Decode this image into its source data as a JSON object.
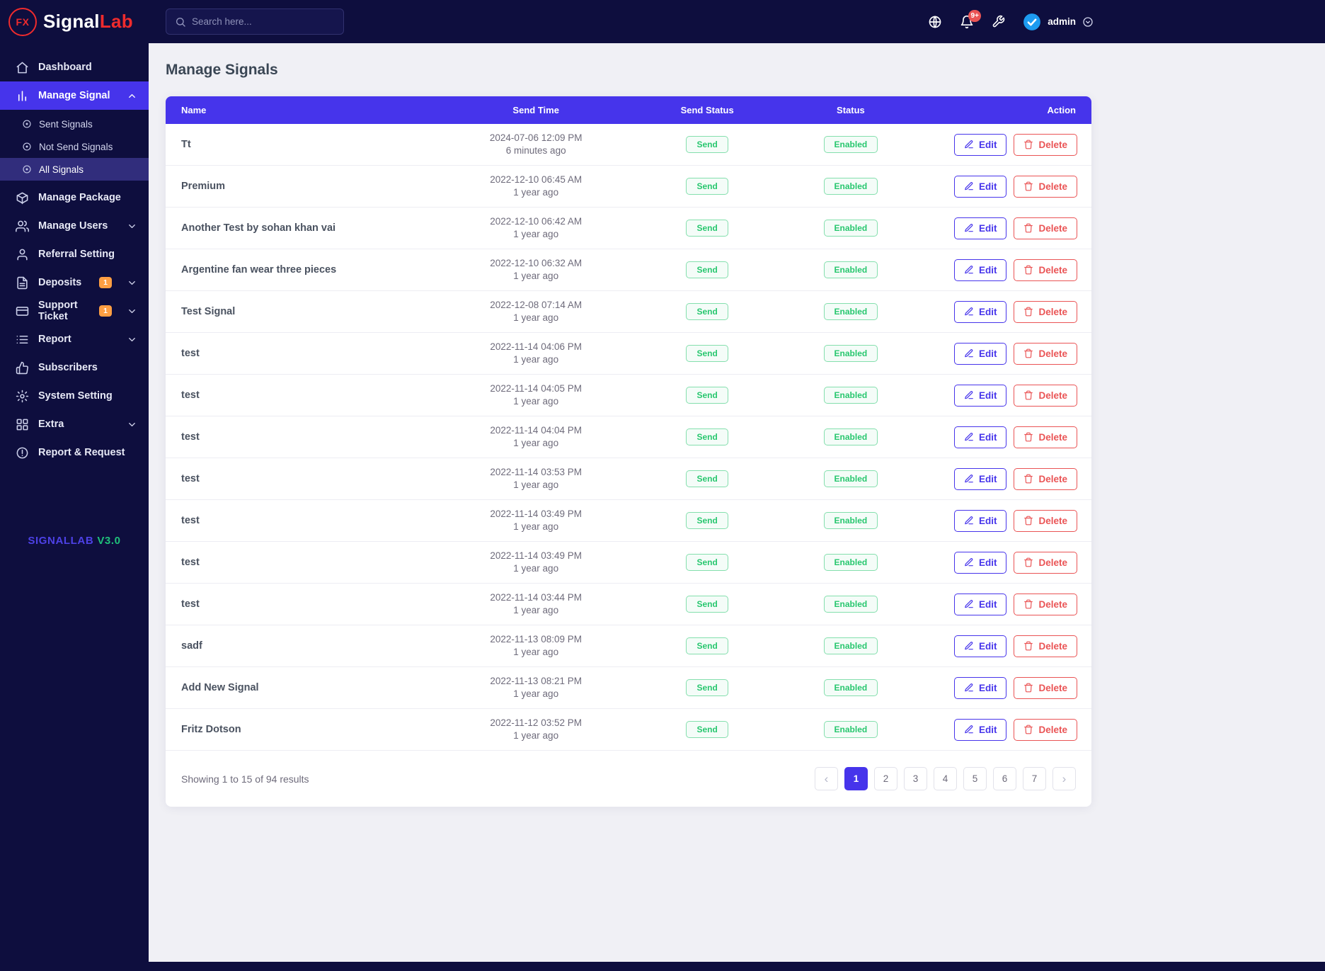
{
  "colors": {
    "navy": "#0e0e3e",
    "accent": "#4634eb",
    "success": "#28c76f",
    "danger": "#ea5455",
    "warning": "#ff9f43",
    "brand_red": "#ef2b2d"
  },
  "brand": {
    "logo_text": "FX",
    "name_part1": "Signal",
    "name_part2": "Lab",
    "footer_name": "SIGNALLAB",
    "footer_version": "V3.0"
  },
  "topbar": {
    "search_placeholder": "Search here...",
    "search_icon": "search-icon",
    "icons": [
      "globe-icon",
      "bell-icon",
      "wrench-icon"
    ],
    "notification_badge": "9+",
    "avatar_icon": "verified-badge-icon",
    "user_name": "admin",
    "caret_icon": "chevron-down-circle-icon"
  },
  "sidebar": {
    "items": [
      {
        "label": "Dashboard",
        "icon": "home-icon",
        "active": false
      },
      {
        "label": "Manage Signal",
        "icon": "bar-chart-icon",
        "active": true,
        "expanded": true,
        "children": [
          {
            "label": "Sent Signals",
            "icon": "disc-icon",
            "active": false
          },
          {
            "label": "Not Send Signals",
            "icon": "disc-icon",
            "active": false
          },
          {
            "label": "All Signals",
            "icon": "disc-icon",
            "active": true
          }
        ]
      },
      {
        "label": "Manage Package",
        "icon": "package-icon",
        "active": false
      },
      {
        "label": "Manage Users",
        "icon": "users-icon",
        "active": false,
        "chevron": "down"
      },
      {
        "label": "Referral Setting",
        "icon": "user-icon",
        "active": false
      },
      {
        "label": "Deposits",
        "icon": "file-icon",
        "active": false,
        "badge": "1",
        "chevron": "down"
      },
      {
        "label": "Support Ticket",
        "icon": "ticket-icon",
        "active": false,
        "badge": "1",
        "chevron": "down"
      },
      {
        "label": "Report",
        "icon": "list-icon",
        "active": false,
        "chevron": "down"
      },
      {
        "label": "Subscribers",
        "icon": "thumbs-up-icon",
        "active": false
      },
      {
        "label": "System Setting",
        "icon": "settings-icon",
        "active": false
      },
      {
        "label": "Extra",
        "icon": "grid-icon",
        "active": false,
        "chevron": "down"
      },
      {
        "label": "Report & Request",
        "icon": "alert-circle-icon",
        "active": false
      }
    ]
  },
  "page": {
    "title": "Manage Signals"
  },
  "table": {
    "columns": [
      "Name",
      "Send Time",
      "Send Status",
      "Status",
      "Action"
    ],
    "edit_label": "Edit",
    "edit_icon": "pencil-icon",
    "delete_label": "Delete",
    "delete_icon": "trash-icon",
    "rows": [
      {
        "name": "Tt",
        "send_time": "2024-07-06 12:09 PM",
        "ago": "6 minutes ago",
        "send_status": "Send",
        "status": "Enabled"
      },
      {
        "name": "Premium",
        "send_time": "2022-12-10 06:45 AM",
        "ago": "1 year ago",
        "send_status": "Send",
        "status": "Enabled"
      },
      {
        "name": "Another Test by sohan khan vai",
        "send_time": "2022-12-10 06:42 AM",
        "ago": "1 year ago",
        "send_status": "Send",
        "status": "Enabled"
      },
      {
        "name": "Argentine fan wear three pieces",
        "send_time": "2022-12-10 06:32 AM",
        "ago": "1 year ago",
        "send_status": "Send",
        "status": "Enabled"
      },
      {
        "name": "Test Signal",
        "send_time": "2022-12-08 07:14 AM",
        "ago": "1 year ago",
        "send_status": "Send",
        "status": "Enabled"
      },
      {
        "name": "test",
        "send_time": "2022-11-14 04:06 PM",
        "ago": "1 year ago",
        "send_status": "Send",
        "status": "Enabled"
      },
      {
        "name": "test",
        "send_time": "2022-11-14 04:05 PM",
        "ago": "1 year ago",
        "send_status": "Send",
        "status": "Enabled"
      },
      {
        "name": "test",
        "send_time": "2022-11-14 04:04 PM",
        "ago": "1 year ago",
        "send_status": "Send",
        "status": "Enabled"
      },
      {
        "name": "test",
        "send_time": "2022-11-14 03:53 PM",
        "ago": "1 year ago",
        "send_status": "Send",
        "status": "Enabled"
      },
      {
        "name": "test",
        "send_time": "2022-11-14 03:49 PM",
        "ago": "1 year ago",
        "send_status": "Send",
        "status": "Enabled"
      },
      {
        "name": "test",
        "send_time": "2022-11-14 03:49 PM",
        "ago": "1 year ago",
        "send_status": "Send",
        "status": "Enabled"
      },
      {
        "name": "test",
        "send_time": "2022-11-14 03:44 PM",
        "ago": "1 year ago",
        "send_status": "Send",
        "status": "Enabled"
      },
      {
        "name": "sadf",
        "send_time": "2022-11-13 08:09 PM",
        "ago": "1 year ago",
        "send_status": "Send",
        "status": "Enabled"
      },
      {
        "name": "Add New Signal",
        "send_time": "2022-11-13 08:21 PM",
        "ago": "1 year ago",
        "send_status": "Send",
        "status": "Enabled"
      },
      {
        "name": "Fritz Dotson",
        "send_time": "2022-11-12 03:52 PM",
        "ago": "1 year ago",
        "send_status": "Send",
        "status": "Enabled"
      }
    ]
  },
  "pagination": {
    "summary": "Showing 1 to 15 of 94 results",
    "prev": "‹",
    "next": "›",
    "pages": [
      "1",
      "2",
      "3",
      "4",
      "5",
      "6",
      "7"
    ],
    "active_page": "1"
  }
}
